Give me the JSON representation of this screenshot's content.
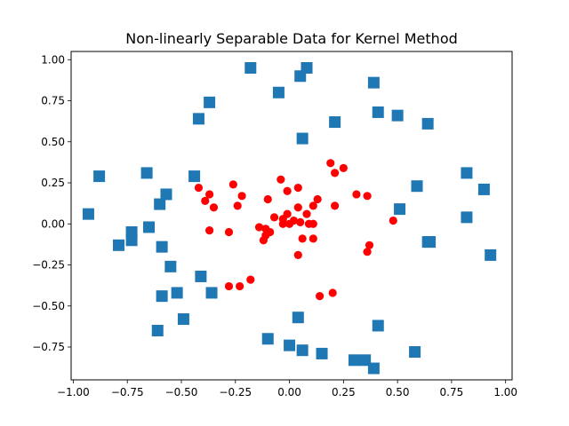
{
  "chart_data": {
    "type": "scatter",
    "title": "Non-linearly Separable Data for Kernel Method",
    "xlabel": "",
    "ylabel": "",
    "xlim": [
      -1.01,
      1.03
    ],
    "ylim": [
      -0.95,
      1.05
    ],
    "x_ticks": [
      -1.0,
      -0.75,
      -0.5,
      -0.25,
      0.0,
      0.25,
      0.5,
      0.75,
      1.0
    ],
    "x_tick_labels": [
      "−1.00",
      "−0.75",
      "−0.50",
      "−0.25",
      "0.00",
      "0.25",
      "0.50",
      "0.75",
      "1.00"
    ],
    "y_ticks": [
      -0.75,
      -0.5,
      -0.25,
      0.0,
      0.25,
      0.5,
      0.75,
      1.0
    ],
    "y_tick_labels": [
      "−0.75",
      "−0.50",
      "−0.25",
      "0.00",
      "0.25",
      "0.50",
      "0.75",
      "1.00"
    ],
    "grid": false,
    "series": [
      {
        "marker": "circle",
        "color": "#ff0000",
        "points": [
          [
            -0.42,
            0.22
          ],
          [
            -0.37,
            0.18
          ],
          [
            -0.39,
            0.14
          ],
          [
            -0.35,
            0.1
          ],
          [
            -0.26,
            0.24
          ],
          [
            -0.22,
            0.17
          ],
          [
            -0.24,
            0.11
          ],
          [
            -0.37,
            -0.04
          ],
          [
            -0.28,
            -0.05
          ],
          [
            -0.1,
            0.15
          ],
          [
            -0.04,
            0.27
          ],
          [
            -0.01,
            0.2
          ],
          [
            0.04,
            0.22
          ],
          [
            0.13,
            0.15
          ],
          [
            0.19,
            0.37
          ],
          [
            0.25,
            0.34
          ],
          [
            0.21,
            0.31
          ],
          [
            0.31,
            0.18
          ],
          [
            0.36,
            0.17
          ],
          [
            0.21,
            0.11
          ],
          [
            0.11,
            0.11
          ],
          [
            0.04,
            0.1
          ],
          [
            -0.01,
            0.06
          ],
          [
            0.08,
            0.06
          ],
          [
            -0.07,
            0.04
          ],
          [
            -0.03,
            0.03
          ],
          [
            0.02,
            0.02
          ],
          [
            0.05,
            0.01
          ],
          [
            0.11,
            0.0
          ],
          [
            0.09,
            0.0
          ],
          [
            -0.03,
            0.0
          ],
          [
            0.0,
            0.0
          ],
          [
            -0.14,
            -0.02
          ],
          [
            -0.11,
            -0.03
          ],
          [
            -0.09,
            -0.05
          ],
          [
            -0.11,
            -0.07
          ],
          [
            -0.12,
            -0.1
          ],
          [
            0.06,
            -0.09
          ],
          [
            0.11,
            -0.09
          ],
          [
            0.04,
            -0.19
          ],
          [
            0.48,
            0.02
          ],
          [
            0.37,
            -0.13
          ],
          [
            0.36,
            -0.17
          ],
          [
            -0.28,
            -0.38
          ],
          [
            -0.23,
            -0.38
          ],
          [
            -0.18,
            -0.34
          ],
          [
            0.14,
            -0.44
          ],
          [
            0.2,
            -0.42
          ]
        ]
      },
      {
        "marker": "square",
        "color": "#1f77b4",
        "points": [
          [
            -0.93,
            0.06
          ],
          [
            -0.88,
            0.29
          ],
          [
            -0.79,
            -0.13
          ],
          [
            -0.73,
            -0.1
          ],
          [
            -0.73,
            -0.05
          ],
          [
            -0.66,
            0.31
          ],
          [
            -0.65,
            -0.02
          ],
          [
            -0.6,
            0.12
          ],
          [
            -0.59,
            -0.14
          ],
          [
            -0.57,
            0.18
          ],
          [
            -0.55,
            -0.26
          ],
          [
            -0.59,
            -0.44
          ],
          [
            -0.52,
            -0.42
          ],
          [
            -0.61,
            -0.65
          ],
          [
            -0.49,
            -0.58
          ],
          [
            -0.44,
            0.29
          ],
          [
            -0.42,
            0.64
          ],
          [
            -0.37,
            0.74
          ],
          [
            -0.41,
            -0.32
          ],
          [
            -0.36,
            -0.42
          ],
          [
            -0.18,
            0.95
          ],
          [
            -0.05,
            0.8
          ],
          [
            0.05,
            0.9
          ],
          [
            0.08,
            0.95
          ],
          [
            0.06,
            0.52
          ],
          [
            0.21,
            0.62
          ],
          [
            0.39,
            0.86
          ],
          [
            0.41,
            0.68
          ],
          [
            0.5,
            0.66
          ],
          [
            0.64,
            0.61
          ],
          [
            0.59,
            0.23
          ],
          [
            0.51,
            0.09
          ],
          [
            0.82,
            0.31
          ],
          [
            0.9,
            0.21
          ],
          [
            0.82,
            0.04
          ],
          [
            0.64,
            -0.11
          ],
          [
            0.65,
            -0.11
          ],
          [
            0.93,
            -0.19
          ],
          [
            0.41,
            -0.62
          ],
          [
            0.58,
            -0.78
          ],
          [
            0.04,
            -0.57
          ],
          [
            -0.1,
            -0.7
          ],
          [
            0.0,
            -0.74
          ],
          [
            0.06,
            -0.77
          ],
          [
            0.15,
            -0.79
          ],
          [
            0.3,
            -0.83
          ],
          [
            0.35,
            -0.83
          ],
          [
            0.39,
            -0.88
          ]
        ]
      }
    ]
  }
}
